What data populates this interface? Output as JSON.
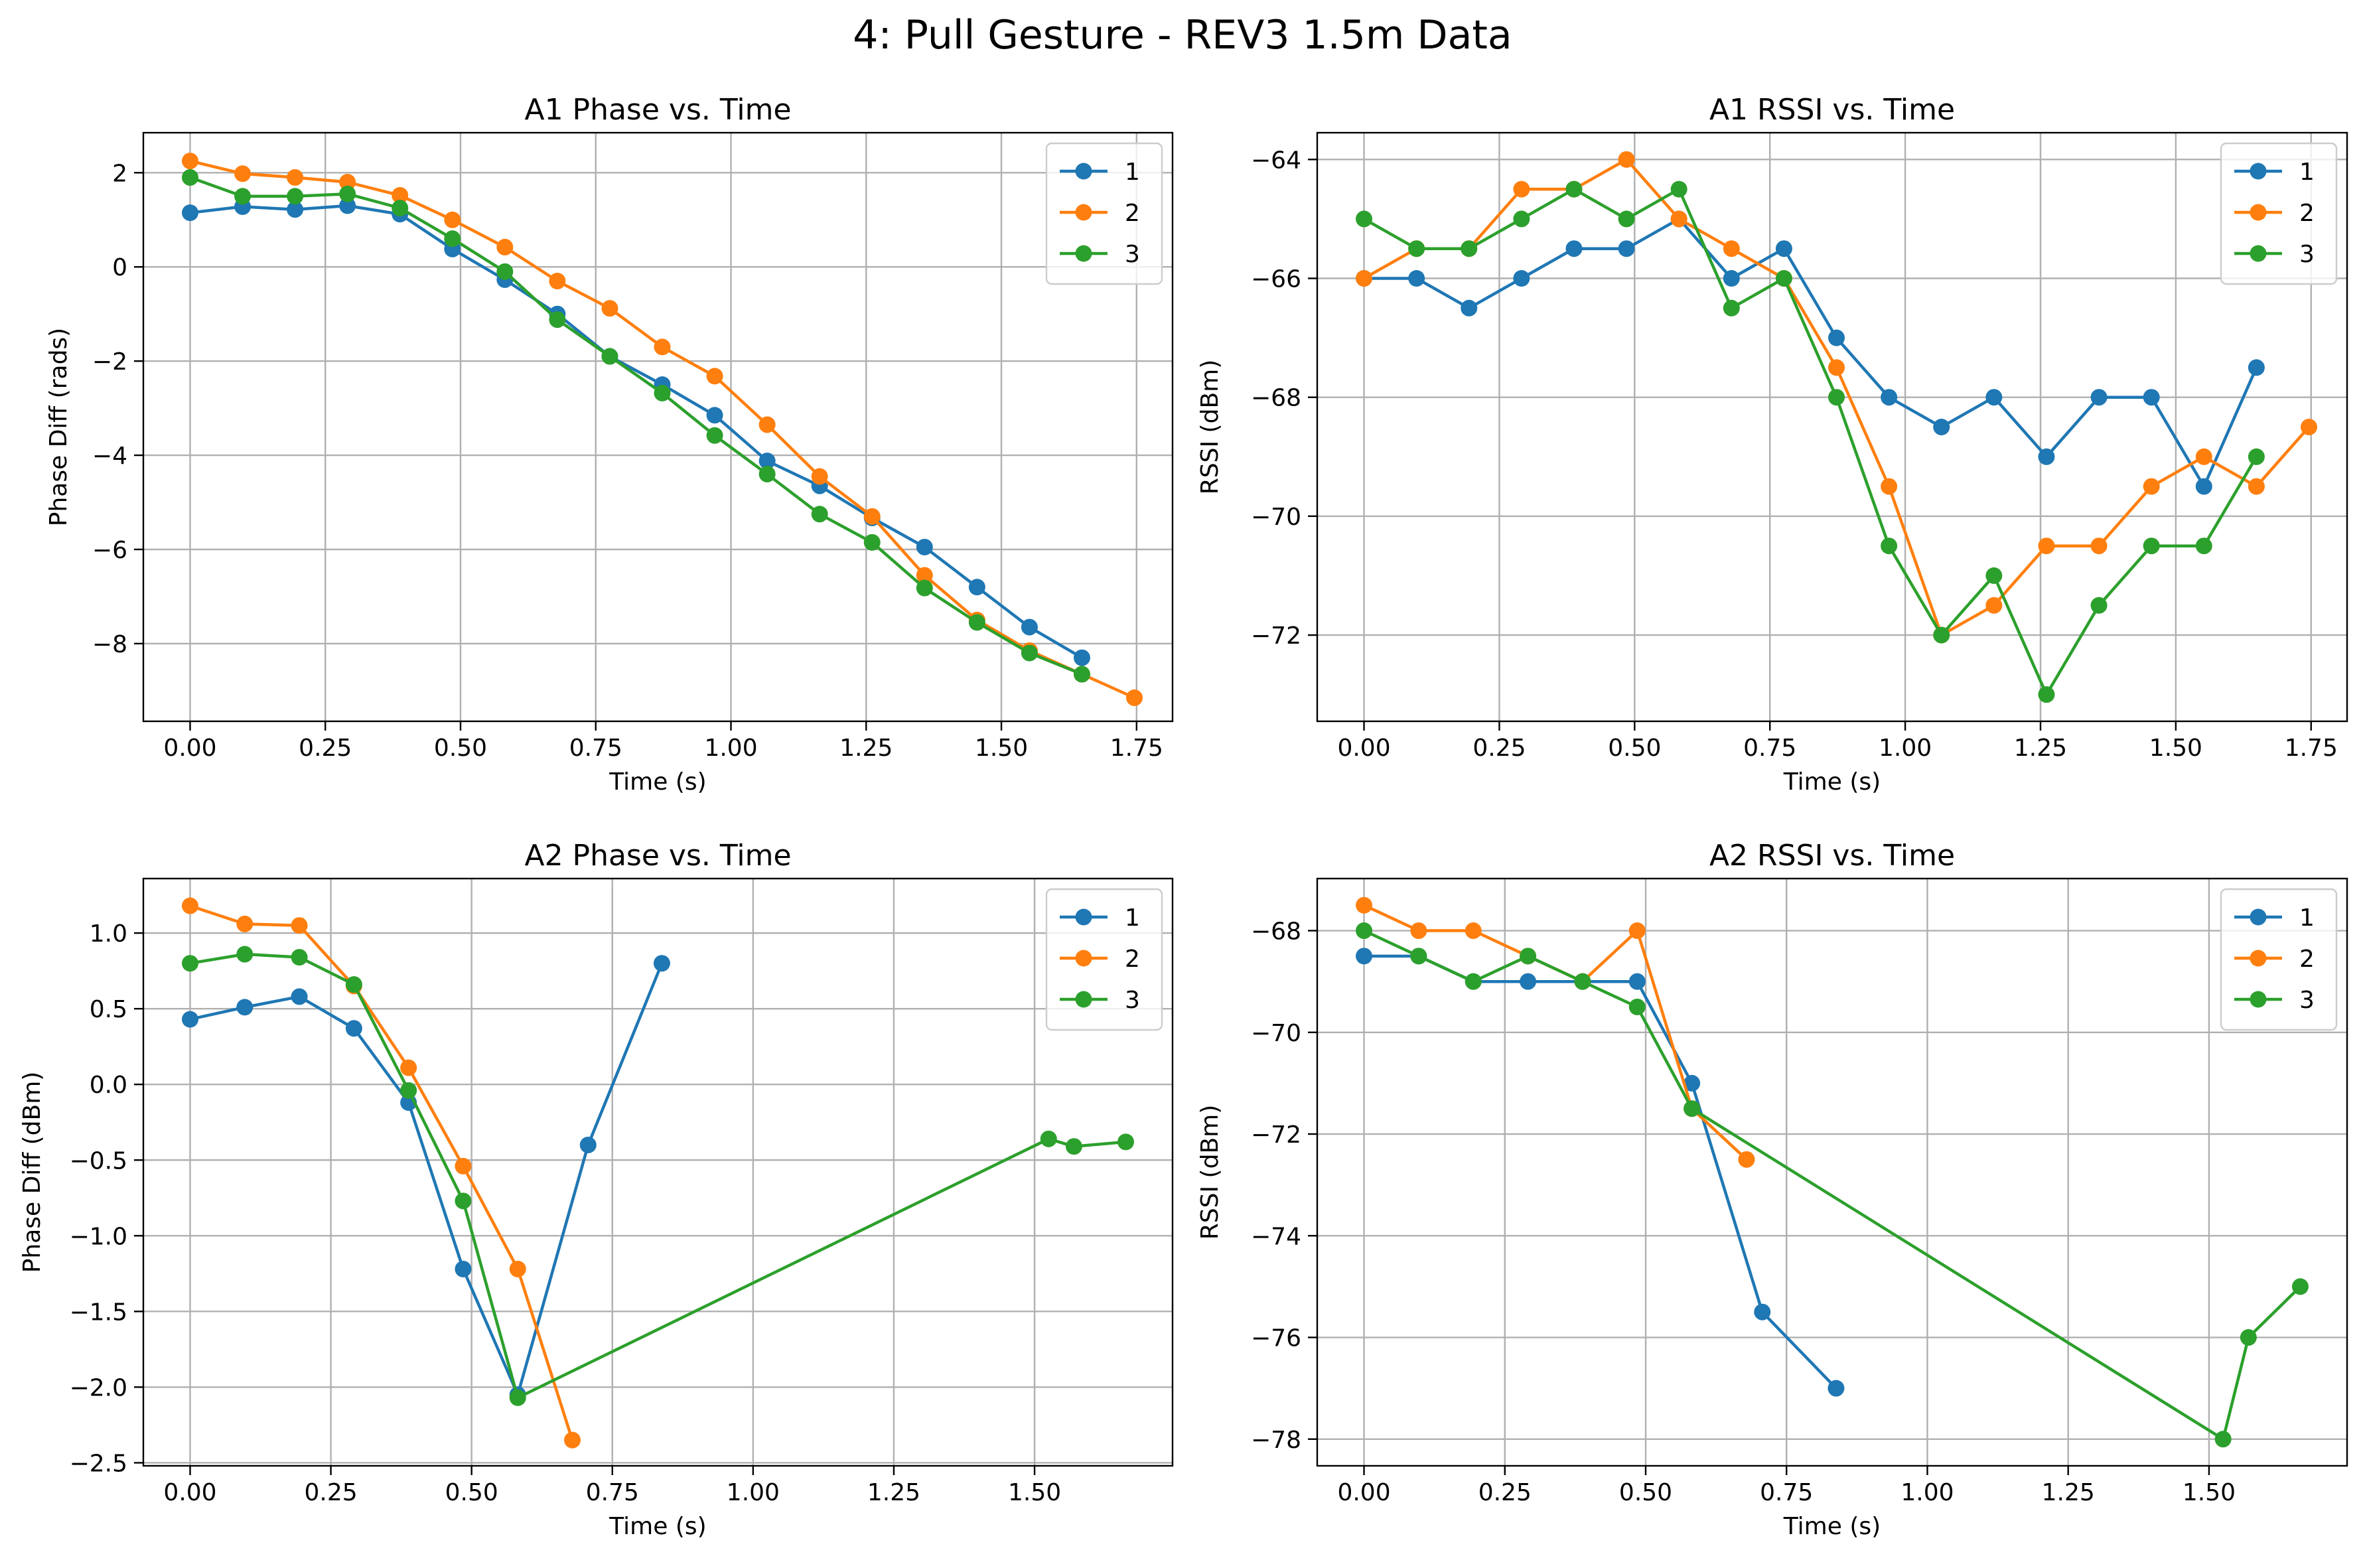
{
  "figure_title": "4: Pull Gesture - REV3 1.5m Data",
  "colors": {
    "s1": "#1f77b4",
    "s2": "#ff7f0e",
    "s3": "#2ca02c",
    "grid": "#b0b0b0"
  },
  "chart_data": [
    {
      "type": "line",
      "title": "A1 Phase vs. Time",
      "xlabel": "Time (s)",
      "ylabel": "Phase Diff (rads)",
      "xlim": [
        -0.0865,
        1.8165
      ],
      "ylim": [
        -9.65,
        2.85
      ],
      "xticks": [
        0,
        0.25,
        0.5,
        0.75,
        1.0,
        1.25,
        1.5,
        1.75
      ],
      "xtick_labels": [
        "0.00",
        "0.25",
        "0.50",
        "0.75",
        "1.00",
        "1.25",
        "1.50",
        "1.75"
      ],
      "yticks": [
        2,
        0,
        -2,
        -4,
        -6,
        -8
      ],
      "ytick_labels": [
        "2",
        "0",
        "−2",
        "−4",
        "−6",
        "−8"
      ],
      "grid": true,
      "legend": "top-right",
      "series": [
        {
          "name": "1",
          "x": [
            0,
            0.097,
            0.194,
            0.291,
            0.388,
            0.485,
            0.582,
            0.679,
            0.776,
            0.873,
            0.97,
            1.067,
            1.164,
            1.261,
            1.358,
            1.455,
            1.552,
            1.649
          ],
          "y": [
            1.15,
            1.28,
            1.22,
            1.3,
            1.12,
            0.38,
            -0.27,
            -1.0,
            -1.9,
            -2.5,
            -3.15,
            -4.12,
            -4.65,
            -5.33,
            -5.95,
            -6.8,
            -7.65,
            -8.3
          ]
        },
        {
          "name": "2",
          "x": [
            0,
            0.097,
            0.194,
            0.291,
            0.388,
            0.485,
            0.582,
            0.679,
            0.776,
            0.873,
            0.97,
            1.067,
            1.164,
            1.261,
            1.358,
            1.455,
            1.552,
            1.649,
            1.746
          ],
          "y": [
            2.25,
            1.98,
            1.9,
            1.8,
            1.52,
            1.0,
            0.42,
            -0.3,
            -0.88,
            -1.7,
            -2.32,
            -3.35,
            -4.45,
            -5.3,
            -6.55,
            -7.5,
            -8.15,
            -8.65,
            -9.15
          ]
        },
        {
          "name": "3",
          "x": [
            0,
            0.097,
            0.194,
            0.291,
            0.388,
            0.485,
            0.582,
            0.679,
            0.776,
            0.873,
            0.97,
            1.067,
            1.164,
            1.261,
            1.358,
            1.455,
            1.552,
            1.649
          ],
          "y": [
            1.9,
            1.5,
            1.5,
            1.55,
            1.25,
            0.6,
            -0.1,
            -1.12,
            -1.9,
            -2.68,
            -3.58,
            -4.4,
            -5.25,
            -5.85,
            -6.82,
            -7.55,
            -8.2,
            -8.65
          ]
        }
      ]
    },
    {
      "type": "line",
      "title": "A1 RSSI vs. Time",
      "xlabel": "Time (s)",
      "ylabel": "RSSI (dBm)",
      "xlim": [
        -0.0865,
        1.8165
      ],
      "ylim": [
        -73.45,
        -63.55
      ],
      "xticks": [
        0,
        0.25,
        0.5,
        0.75,
        1.0,
        1.25,
        1.5,
        1.75
      ],
      "xtick_labels": [
        "0.00",
        "0.25",
        "0.50",
        "0.75",
        "1.00",
        "1.25",
        "1.50",
        "1.75"
      ],
      "yticks": [
        -64,
        -66,
        -68,
        -70,
        -72
      ],
      "ytick_labels": [
        "−64",
        "−66",
        "−68",
        "−70",
        "−72"
      ],
      "grid": true,
      "legend": "top-right",
      "series": [
        {
          "name": "1",
          "x": [
            0,
            0.097,
            0.194,
            0.291,
            0.388,
            0.485,
            0.582,
            0.679,
            0.776,
            0.873,
            0.97,
            1.067,
            1.164,
            1.261,
            1.358,
            1.455,
            1.552,
            1.649
          ],
          "y": [
            -66,
            -66,
            -66.5,
            -66,
            -65.5,
            -65.5,
            -65,
            -66,
            -65.5,
            -67,
            -68,
            -68.5,
            -68,
            -69,
            -68,
            -68,
            -69.5,
            -67.5
          ]
        },
        {
          "name": "2",
          "x": [
            0,
            0.097,
            0.194,
            0.291,
            0.388,
            0.485,
            0.582,
            0.679,
            0.776,
            0.873,
            0.97,
            1.067,
            1.164,
            1.261,
            1.358,
            1.455,
            1.552,
            1.649,
            1.746
          ],
          "y": [
            -66,
            -65.5,
            -65.5,
            -64.5,
            -64.5,
            -64,
            -65,
            -65.5,
            -66,
            -67.5,
            -69.5,
            -72,
            -71.5,
            -70.5,
            -70.5,
            -69.5,
            -69,
            -69.5,
            -68.5
          ]
        },
        {
          "name": "3",
          "x": [
            0,
            0.097,
            0.194,
            0.291,
            0.388,
            0.485,
            0.582,
            0.679,
            0.776,
            0.873,
            0.97,
            1.067,
            1.164,
            1.261,
            1.358,
            1.455,
            1.552,
            1.649
          ],
          "y": [
            -65,
            -65.5,
            -65.5,
            -65,
            -64.5,
            -65,
            -64.5,
            -66.5,
            -66,
            -68,
            -70.5,
            -72,
            -71,
            -73,
            -71.5,
            -70.5,
            -70.5,
            -69
          ]
        }
      ]
    },
    {
      "type": "line",
      "title": "A2 Phase vs. Time",
      "xlabel": "Time (s)",
      "ylabel": "Phase Diff (dBm)",
      "xlim": [
        -0.0831,
        1.7451
      ],
      "ylim": [
        -2.52,
        1.36
      ],
      "xticks": [
        0,
        0.25,
        0.5,
        0.75,
        1.0,
        1.25,
        1.5
      ],
      "xtick_labels": [
        "0.00",
        "0.25",
        "0.50",
        "0.75",
        "1.00",
        "1.25",
        "1.50"
      ],
      "yticks": [
        1.0,
        0.5,
        0.0,
        -0.5,
        -1.0,
        -1.5,
        -2.0,
        -2.5
      ],
      "ytick_labels": [
        "1.0",
        "0.5",
        "0.0",
        "−0.5",
        "−1.0",
        "−1.5",
        "−2.0",
        "−2.5"
      ],
      "grid": true,
      "legend": "top-right",
      "series": [
        {
          "name": "1",
          "x": [
            0,
            0.097,
            0.194,
            0.291,
            0.388,
            0.485,
            0.582,
            0.707,
            0.838
          ],
          "y": [
            0.43,
            0.51,
            0.58,
            0.37,
            -0.12,
            -1.22,
            -2.05,
            -0.4,
            0.8
          ]
        },
        {
          "name": "2",
          "x": [
            0,
            0.097,
            0.194,
            0.291,
            0.388,
            0.485,
            0.582,
            0.679
          ],
          "y": [
            1.18,
            1.06,
            1.05,
            0.65,
            0.11,
            -0.54,
            -1.22,
            -2.35
          ]
        },
        {
          "name": "3",
          "x": [
            0,
            0.097,
            0.194,
            0.291,
            0.388,
            0.485,
            0.582,
            1.525,
            1.57,
            1.662
          ],
          "y": [
            0.8,
            0.86,
            0.84,
            0.66,
            -0.04,
            -0.77,
            -2.07,
            -0.36,
            -0.41,
            -0.38
          ]
        }
      ]
    },
    {
      "type": "line",
      "title": "A2 RSSI vs. Time",
      "xlabel": "Time (s)",
      "ylabel": "RSSI (dBm)",
      "xlim": [
        -0.0831,
        1.7451
      ],
      "ylim": [
        -78.525,
        -66.975
      ],
      "xticks": [
        0,
        0.25,
        0.5,
        0.75,
        1.0,
        1.25,
        1.5
      ],
      "xtick_labels": [
        "0.00",
        "0.25",
        "0.50",
        "0.75",
        "1.00",
        "1.25",
        "1.50"
      ],
      "yticks": [
        -68,
        -70,
        -72,
        -74,
        -76,
        -78
      ],
      "ytick_labels": [
        "−68",
        "−70",
        "−72",
        "−74",
        "−76",
        "−78"
      ],
      "grid": true,
      "legend": "top-right",
      "series": [
        {
          "name": "1",
          "x": [
            0,
            0.097,
            0.194,
            0.291,
            0.388,
            0.485,
            0.582,
            0.707,
            0.838
          ],
          "y": [
            -68.5,
            -68.5,
            -69,
            -69,
            -69,
            -69,
            -71,
            -75.5,
            -77
          ]
        },
        {
          "name": "2",
          "x": [
            0,
            0.097,
            0.194,
            0.291,
            0.388,
            0.485,
            0.582,
            0.679
          ],
          "y": [
            -67.5,
            -68,
            -68,
            -68.5,
            -69,
            -68,
            -71.5,
            -72.5
          ]
        },
        {
          "name": "3",
          "x": [
            0,
            0.097,
            0.194,
            0.291,
            0.388,
            0.485,
            0.582,
            1.525,
            1.57,
            1.662
          ],
          "y": [
            -68,
            -68.5,
            -69,
            -68.5,
            -69,
            -69.5,
            -71.5,
            -78,
            -76,
            -75
          ]
        }
      ]
    }
  ]
}
